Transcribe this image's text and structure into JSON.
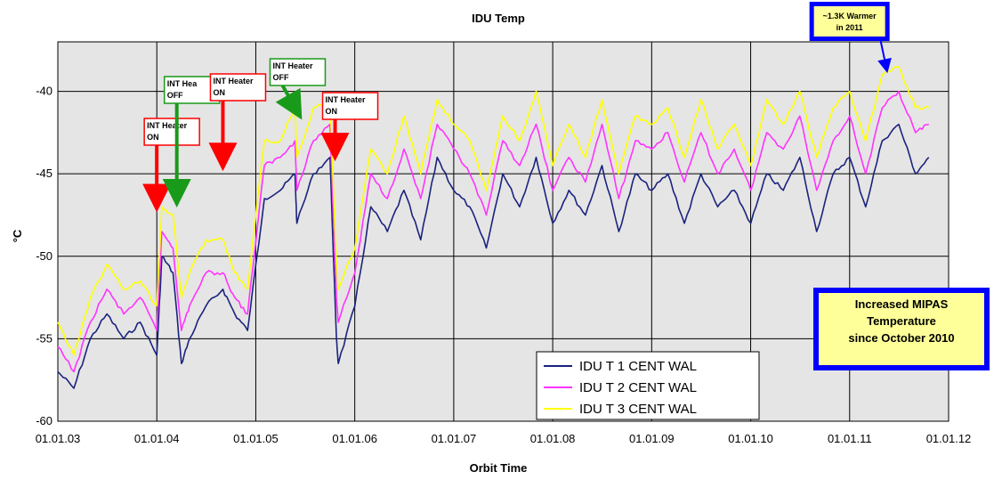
{
  "chart_data": {
    "type": "line",
    "title": "IDU Temp",
    "xlabel": "Orbit Time",
    "ylabel": "°C",
    "ylim": [
      -60,
      -37
    ],
    "xlim": [
      "2003-01-01",
      "2012-01-01"
    ],
    "x_ticks": [
      "01.01.03",
      "01.01.04",
      "01.01.05",
      "01.01.06",
      "01.01.07",
      "01.01.08",
      "01.01.09",
      "01.01.10",
      "01.01.11",
      "01.01.12"
    ],
    "y_ticks": [
      -60,
      -55,
      -50,
      -45,
      -40
    ],
    "grid": true,
    "legend_position": "bottom-center",
    "series": [
      {
        "name": "IDU T 1 CENT WAL",
        "color": "#1a237e",
        "x": [
          "2003-01-01",
          "2003-03-01",
          "2003-05-01",
          "2003-07-01",
          "2003-09-01",
          "2003-11-01",
          "2004-01-01",
          "2004-01-20",
          "2004-03-01",
          "2004-04-01",
          "2004-05-01",
          "2004-07-01",
          "2004-09-01",
          "2004-10-15",
          "2004-12-01",
          "2005-02-01",
          "2005-04-01",
          "2005-05-25",
          "2005-06-01",
          "2005-08-01",
          "2005-10-01",
          "2005-10-25",
          "2005-11-01",
          "2006-01-01",
          "2006-03-01",
          "2006-05-01",
          "2006-07-01",
          "2006-09-01",
          "2006-11-01",
          "2007-01-01",
          "2007-03-01",
          "2007-05-01",
          "2007-07-01",
          "2007-09-01",
          "2007-11-01",
          "2008-01-01",
          "2008-03-01",
          "2008-05-01",
          "2008-07-01",
          "2008-09-01",
          "2008-11-01",
          "2009-01-01",
          "2009-03-01",
          "2009-05-01",
          "2009-07-01",
          "2009-09-01",
          "2009-11-01",
          "2010-01-01",
          "2010-03-01",
          "2010-05-01",
          "2010-07-01",
          "2010-09-01",
          "2010-11-01",
          "2011-01-01",
          "2011-03-01",
          "2011-05-01",
          "2011-07-01",
          "2011-09-01",
          "2011-10-20"
        ],
        "y": [
          -57,
          -58,
          -55,
          -53.5,
          -55,
          -54,
          -56,
          -50,
          -51,
          -56.5,
          -55,
          -53,
          -52,
          -53.5,
          -54.5,
          -46.5,
          -46,
          -45,
          -48,
          -45,
          -44,
          -55,
          -56.5,
          -53,
          -47,
          -48.5,
          -46,
          -49,
          -44,
          -46,
          -47,
          -49.5,
          -45,
          -47,
          -44,
          -48,
          -46,
          -47.5,
          -44.5,
          -48.5,
          -45,
          -46,
          -45,
          -48,
          -45,
          -47,
          -46,
          -48,
          -45,
          -46,
          -44,
          -48.5,
          -45,
          -44,
          -47,
          -43,
          -42,
          -45,
          -44
        ]
      },
      {
        "name": "IDU T 2 CENT WAL",
        "color": "#ff33ff",
        "x": [
          "2003-01-01",
          "2003-03-01",
          "2003-05-01",
          "2003-07-01",
          "2003-09-01",
          "2003-11-01",
          "2004-01-01",
          "2004-01-20",
          "2004-03-01",
          "2004-04-01",
          "2004-05-01",
          "2004-07-01",
          "2004-09-01",
          "2004-10-15",
          "2004-12-01",
          "2005-02-01",
          "2005-04-01",
          "2005-05-25",
          "2005-06-01",
          "2005-08-01",
          "2005-10-01",
          "2005-10-25",
          "2005-11-01",
          "2006-01-01",
          "2006-03-01",
          "2006-05-01",
          "2006-07-01",
          "2006-09-01",
          "2006-11-01",
          "2007-01-01",
          "2007-03-01",
          "2007-05-01",
          "2007-07-01",
          "2007-09-01",
          "2007-11-01",
          "2008-01-01",
          "2008-03-01",
          "2008-05-01",
          "2008-07-01",
          "2008-09-01",
          "2008-11-01",
          "2009-01-01",
          "2009-03-01",
          "2009-05-01",
          "2009-07-01",
          "2009-09-01",
          "2009-11-01",
          "2010-01-01",
          "2010-03-01",
          "2010-05-01",
          "2010-07-01",
          "2010-09-01",
          "2010-11-01",
          "2011-01-01",
          "2011-03-01",
          "2011-05-01",
          "2011-07-01",
          "2011-09-01",
          "2011-10-20"
        ],
        "y": [
          -55.5,
          -57,
          -54,
          -52,
          -53.5,
          -52.5,
          -54.5,
          -48.5,
          -49.5,
          -54.5,
          -53,
          -51,
          -51,
          -52.5,
          -53.5,
          -44.5,
          -44,
          -43,
          -46,
          -43,
          -42,
          -52.5,
          -54,
          -51,
          -45,
          -46.5,
          -43.5,
          -46.5,
          -42,
          -43.5,
          -45,
          -47.5,
          -43,
          -44.5,
          -42,
          -46,
          -44,
          -45.5,
          -42,
          -46.5,
          -43,
          -43.5,
          -42.5,
          -45.5,
          -42.5,
          -45,
          -43.5,
          -46,
          -42.5,
          -43.5,
          -41.5,
          -46,
          -43,
          -41.5,
          -45,
          -41,
          -40,
          -42.5,
          -42
        ]
      },
      {
        "name": "IDU T 3 CENT WAL",
        "color": "#ffff00",
        "x": [
          "2003-01-01",
          "2003-03-01",
          "2003-05-01",
          "2003-07-01",
          "2003-09-01",
          "2003-11-01",
          "2004-01-01",
          "2004-01-20",
          "2004-03-01",
          "2004-04-01",
          "2004-05-01",
          "2004-07-01",
          "2004-09-01",
          "2004-10-15",
          "2004-12-01",
          "2005-02-01",
          "2005-04-01",
          "2005-05-25",
          "2005-06-01",
          "2005-08-01",
          "2005-10-01",
          "2005-10-25",
          "2005-11-01",
          "2006-01-01",
          "2006-03-01",
          "2006-05-01",
          "2006-07-01",
          "2006-09-01",
          "2006-11-01",
          "2007-01-01",
          "2007-03-01",
          "2007-05-01",
          "2007-07-01",
          "2007-09-01",
          "2007-11-01",
          "2008-01-01",
          "2008-03-01",
          "2008-05-01",
          "2008-07-01",
          "2008-09-01",
          "2008-11-01",
          "2009-01-01",
          "2009-03-01",
          "2009-05-01",
          "2009-07-01",
          "2009-09-01",
          "2009-11-01",
          "2010-01-01",
          "2010-03-01",
          "2010-05-01",
          "2010-07-01",
          "2010-09-01",
          "2010-11-01",
          "2011-01-01",
          "2011-03-01",
          "2011-05-01",
          "2011-07-01",
          "2011-09-01",
          "2011-10-20"
        ],
        "y": [
          -54,
          -56,
          -52.5,
          -50.5,
          -52,
          -51.5,
          -53,
          -47,
          -47.5,
          -52.5,
          -51,
          -49,
          -49,
          -51,
          -52,
          -43,
          -43,
          -41,
          -44,
          -41,
          -40.5,
          -50.5,
          -52,
          -49.5,
          -43.5,
          -45,
          -41.5,
          -45,
          -40.5,
          -42,
          -43,
          -46,
          -41.5,
          -43,
          -40,
          -44.5,
          -42,
          -44,
          -40.5,
          -45,
          -41.5,
          -42,
          -41,
          -44,
          -40.5,
          -43.5,
          -42,
          -44.5,
          -40.5,
          -42,
          -40,
          -44,
          -41,
          -40,
          -43,
          -39,
          -38.5,
          -41,
          -41
        ]
      }
    ],
    "annotations": [
      {
        "id": "int-heater-on-1",
        "lines": [
          "INT Heater",
          "ON"
        ],
        "arrow_color": "#ff0000",
        "border_color": "#ff0000",
        "x": "2004-01-01",
        "y": -46.8
      },
      {
        "id": "int-heater-off-1",
        "lines": [
          "INT Hea",
          "OFF"
        ],
        "arrow_color": "#1a9a1a",
        "border_color": "#1a9a1a",
        "x": "2004-03-15",
        "y": -46.5
      },
      {
        "id": "int-heater-on-2",
        "lines": [
          "INT Heater",
          "ON"
        ],
        "arrow_color": "#ff0000",
        "border_color": "#ff0000",
        "x": "2004-09-01",
        "y": -44.3
      },
      {
        "id": "int-heater-off-2",
        "lines": [
          "INT Heater",
          "OFF"
        ],
        "arrow_color": "#1a9a1a",
        "border_color": "#1a9a1a",
        "x": "2005-05-25",
        "y": -41.3
      },
      {
        "id": "int-heater-on-3",
        "lines": [
          "INT Heater",
          "ON"
        ],
        "arrow_color": "#ff0000",
        "border_color": "#ff0000",
        "x": "2005-10-20",
        "y": -43.7
      },
      {
        "id": "warmer-2011",
        "lines": [
          "~1.3K Warmer",
          "in 2011"
        ],
        "arrow_color": "#0000ff",
        "border_color": "#0000ff",
        "x": "2011-05-15",
        "y": -38.8
      }
    ],
    "note_box": {
      "lines": [
        "Increased MIPAS",
        "Temperature",
        "since October 2010"
      ]
    }
  }
}
